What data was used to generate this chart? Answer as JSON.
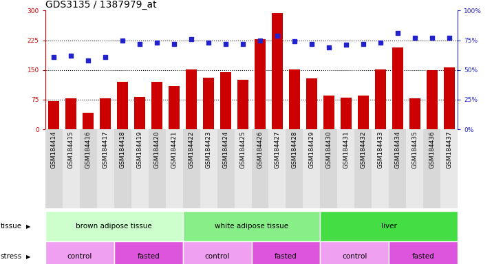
{
  "title": "GDS3135 / 1387979_at",
  "samples": [
    "GSM184414",
    "GSM184415",
    "GSM184416",
    "GSM184417",
    "GSM184418",
    "GSM184419",
    "GSM184420",
    "GSM184421",
    "GSM184422",
    "GSM184423",
    "GSM184424",
    "GSM184425",
    "GSM184426",
    "GSM184427",
    "GSM184428",
    "GSM184429",
    "GSM184430",
    "GSM184431",
    "GSM184432",
    "GSM184433",
    "GSM184434",
    "GSM184435",
    "GSM184436",
    "GSM184437"
  ],
  "counts": [
    72,
    78,
    42,
    78,
    120,
    82,
    120,
    110,
    152,
    130,
    145,
    125,
    228,
    293,
    152,
    128,
    85,
    80,
    85,
    152,
    207,
    78,
    150,
    157
  ],
  "percentiles": [
    61,
    62,
    58,
    61,
    75,
    72,
    73,
    72,
    76,
    73,
    72,
    72,
    75,
    79,
    74,
    72,
    69,
    71,
    72,
    73,
    81,
    77,
    77,
    77
  ],
  "bar_color": "#cc0000",
  "dot_color": "#2222cc",
  "left_ylim": [
    0,
    300
  ],
  "right_ylim": [
    0,
    100
  ],
  "left_yticks": [
    0,
    75,
    150,
    225,
    300
  ],
  "right_yticks": [
    0,
    25,
    50,
    75,
    100
  ],
  "right_yticklabels": [
    "0%",
    "25%",
    "50%",
    "75%",
    "100%"
  ],
  "hlines": [
    75,
    150,
    225
  ],
  "tissue_groups": [
    {
      "label": "brown adipose tissue",
      "start": 0,
      "end": 8,
      "color": "#ccffcc"
    },
    {
      "label": "white adipose tissue",
      "start": 8,
      "end": 16,
      "color": "#88ee88"
    },
    {
      "label": "liver",
      "start": 16,
      "end": 24,
      "color": "#44dd44"
    }
  ],
  "stress_groups": [
    {
      "label": "control",
      "start": 0,
      "end": 4,
      "color": "#f0a0f0"
    },
    {
      "label": "fasted",
      "start": 4,
      "end": 8,
      "color": "#dd55dd"
    },
    {
      "label": "control",
      "start": 8,
      "end": 12,
      "color": "#f0a0f0"
    },
    {
      "label": "fasted",
      "start": 12,
      "end": 16,
      "color": "#dd55dd"
    },
    {
      "label": "control",
      "start": 16,
      "end": 20,
      "color": "#f0a0f0"
    },
    {
      "label": "fasted",
      "start": 20,
      "end": 24,
      "color": "#dd55dd"
    }
  ],
  "background_color": "#ffffff",
  "plot_bg_color": "#ffffff",
  "title_fontsize": 10,
  "tick_fontsize": 6.5,
  "label_fontsize": 7.5,
  "annot_fontsize": 7.5
}
